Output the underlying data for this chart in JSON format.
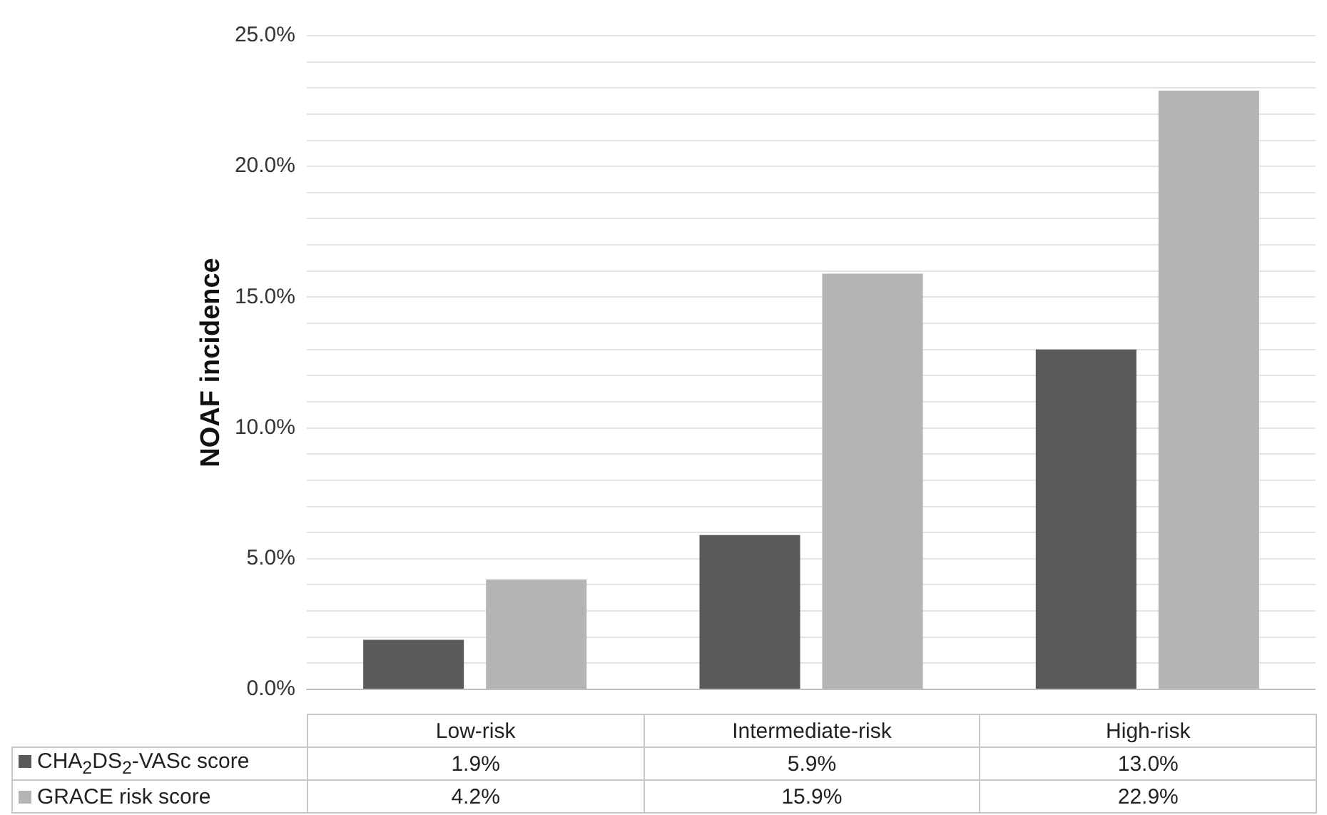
{
  "chart_data": {
    "type": "bar",
    "ylabel": "NOAF incidence",
    "categories": [
      "Low-risk",
      "Intermediate-risk",
      "High-risk"
    ],
    "series": [
      {
        "name": "CHA$_{2}$DS$_{2}$-VASc score",
        "color": "#5a5a5a",
        "values": [
          1.9,
          5.9,
          13.0
        ],
        "value_labels": [
          "1.9%",
          "5.9%",
          "13.0%"
        ]
      },
      {
        "name": "GRACE risk score",
        "color": "#b4b4b4",
        "values": [
          4.2,
          15.9,
          22.9
        ],
        "value_labels": [
          "4.2%",
          "15.9%",
          "22.9%"
        ]
      }
    ],
    "ylim": [
      0,
      25
    ],
    "yticks": [
      {
        "value": 0,
        "label": "0.0%"
      },
      {
        "value": 1,
        "label": null
      },
      {
        "value": 2,
        "label": null
      },
      {
        "value": 3,
        "label": null
      },
      {
        "value": 4,
        "label": null
      },
      {
        "value": 5,
        "label": "5.0%"
      },
      {
        "value": 6,
        "label": null
      },
      {
        "value": 7,
        "label": null
      },
      {
        "value": 8,
        "label": null
      },
      {
        "value": 9,
        "label": null
      },
      {
        "value": 10,
        "label": "10.0%"
      },
      {
        "value": 11,
        "label": null
      },
      {
        "value": 12,
        "label": null
      },
      {
        "value": 13,
        "label": null
      },
      {
        "value": 14,
        "label": null
      },
      {
        "value": 15,
        "label": "15.0%"
      },
      {
        "value": 16,
        "label": null
      },
      {
        "value": 17,
        "label": null
      },
      {
        "value": 18,
        "label": null
      },
      {
        "value": 19,
        "label": null
      },
      {
        "value": 20,
        "label": "20.0%"
      },
      {
        "value": 21,
        "label": null
      },
      {
        "value": 22,
        "label": null
      },
      {
        "value": 23,
        "label": null
      },
      {
        "value": 24,
        "label": null
      },
      {
        "value": 25,
        "label": "25.0%"
      }
    ],
    "grid": "y",
    "legend": "bottom"
  }
}
